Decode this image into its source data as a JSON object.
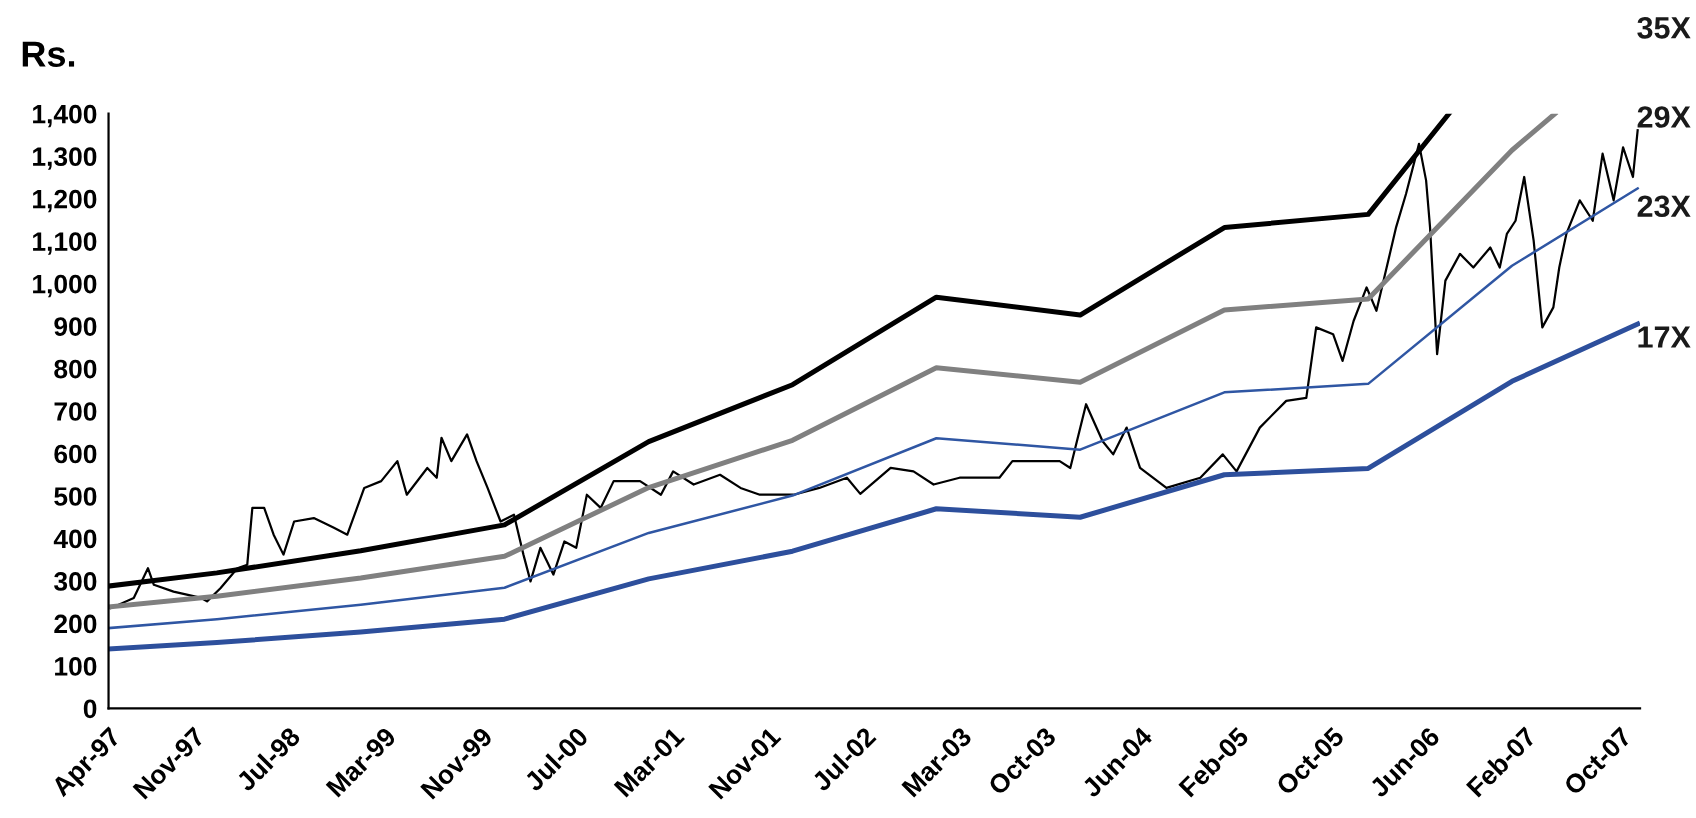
{
  "chart_data": {
    "type": "line",
    "ylabel": "Rs.",
    "xlim": [
      "1997-04-01",
      "2007-11-22"
    ],
    "xticks": [
      {
        "value": "1997-04-01",
        "label": "Apr-97"
      },
      {
        "value": "1997-11-01",
        "label": "Nov-97"
      },
      {
        "value": "1998-07-01",
        "label": "Jul-98"
      },
      {
        "value": "1999-03-01",
        "label": "Mar-99"
      },
      {
        "value": "1999-11-01",
        "label": "Nov-99"
      },
      {
        "value": "2000-07-01",
        "label": "Jul-00"
      },
      {
        "value": "2001-03-01",
        "label": "Mar-01"
      },
      {
        "value": "2001-11-01",
        "label": "Nov-01"
      },
      {
        "value": "2002-07-01",
        "label": "Jul-02"
      },
      {
        "value": "2003-03-01",
        "label": "Mar-03"
      },
      {
        "value": "2003-10-01",
        "label": "Oct-03"
      },
      {
        "value": "2004-06-01",
        "label": "Jun-04"
      },
      {
        "value": "2005-02-01",
        "label": "Feb-05"
      },
      {
        "value": "2005-10-01",
        "label": "Oct-05"
      },
      {
        "value": "2006-06-01",
        "label": "Jun-06"
      },
      {
        "value": "2007-02-01",
        "label": "Feb-07"
      },
      {
        "value": "2007-10-01",
        "label": "Oct-07"
      }
    ],
    "ylim": [
      0,
      1400
    ],
    "yticks": [
      0,
      100,
      200,
      300,
      400,
      500,
      600,
      700,
      800,
      900,
      {
        "value": 1000,
        "label": "1,000"
      },
      {
        "value": 1100,
        "label": "1,100"
      },
      {
        "value": 1200,
        "label": "1,200"
      },
      {
        "value": 1300,
        "label": "1,300"
      },
      {
        "value": 1400,
        "label": "1,400"
      }
    ],
    "grid": false,
    "legend": false,
    "marker": "none",
    "line_style": "solid",
    "series": [
      {
        "color": "#000000",
        "x": [
          "1997-04-07",
          "1997-06-04",
          "1997-07-10",
          "1997-07-25",
          "1997-09-13",
          "1997-11-22",
          "1997-12-07",
          "1998-01-10",
          "1998-02-22",
          "1998-03-19",
          "1998-04-01",
          "1998-05-01",
          "1998-05-25",
          "1998-06-19",
          "1998-07-16",
          "1998-09-04",
          "1998-10-25",
          "1998-11-28",
          "1999-01-10",
          "1999-02-22",
          "1999-04-04",
          "1999-04-28",
          "1999-06-19",
          "1999-07-13",
          "1999-07-25",
          "1999-08-19",
          "1999-09-28",
          "1999-10-22",
          "1999-11-19",
          "1999-12-22",
          "2000-01-25",
          "2000-02-18",
          "2000-03-07",
          "2000-04-01",
          "2000-05-04",
          "2000-06-01",
          "2000-07-01",
          "2000-07-28",
          "2000-09-01",
          "2000-10-04",
          "2000-12-10",
          "2001-02-01",
          "2001-03-04",
          "2001-04-25",
          "2001-07-01",
          "2001-08-22",
          "2001-10-10",
          "2002-01-04",
          "2002-03-10",
          "2002-05-19",
          "2002-06-22",
          "2002-09-07",
          "2002-11-04",
          "2002-12-25",
          "2003-03-01",
          "2003-06-10",
          "2003-07-13",
          "2003-11-10",
          "2003-12-07",
          "2004-01-16",
          "2004-02-27",
          "2004-03-25",
          "2004-04-28",
          "2004-06-01",
          "2004-08-07",
          "2004-11-01",
          "2004-12-28",
          "2005-02-01",
          "2005-04-01",
          "2005-06-07",
          "2005-07-28",
          "2005-08-22",
          "2005-10-04",
          "2005-10-28",
          "2005-11-25",
          "2005-12-28",
          "2006-01-22",
          "2006-03-13",
          "2006-04-07",
          "2006-05-10",
          "2006-05-28",
          "2006-06-07",
          "2006-06-25",
          "2006-07-16",
          "2006-08-22",
          "2006-09-25",
          "2006-11-07",
          "2006-12-01",
          "2006-12-19",
          "2007-01-10",
          "2007-02-01",
          "2007-02-25",
          "2007-03-19",
          "2007-04-16",
          "2007-05-01",
          "2007-05-19",
          "2007-06-22",
          "2007-07-25",
          "2007-08-19",
          "2007-09-16",
          "2007-10-10",
          "2007-11-04",
          "2007-11-16"
        ],
        "values": [
          236,
          260,
          330,
          291,
          275,
          260,
          252,
          283,
          330,
          338,
          472,
          472,
          409,
          362,
          440,
          448,
          425,
          409,
          519,
          535,
          582,
          503,
          566,
          543,
          637,
          582,
          645,
          582,
          519,
          440,
          456,
          362,
          299,
          378,
          315,
          393,
          378,
          503,
          472,
          535,
          535,
          503,
          558,
          527,
          550,
          519,
          503,
          503,
          519,
          543,
          505,
          566,
          558,
          527,
          543,
          543,
          582,
          582,
          566,
          716,
          629,
          598,
          661,
          566,
          519,
          543,
          598,
          558,
          661,
          724,
          731,
          897,
          881,
          818,
          912,
          991,
          936,
          1133,
          1211,
          1329,
          1243,
          1133,
          834,
          1007,
          1070,
          1038,
          1085,
          1038,
          1117,
          1148,
          1251,
          1101,
          897,
          944,
          1038,
          1117,
          1196,
          1148,
          1306,
          1196,
          1321,
          1251,
          1361
        ]
      },
      {
        "name": "35X",
        "color": "#000000",
        "x": [
          "1997-04-01",
          "1998-01-01",
          "1999-01-01",
          "2000-01-01",
          "2001-01-01",
          "2002-01-01",
          "2003-01-01",
          "2004-01-01",
          "2005-01-01",
          "2006-01-01",
          "2006-07-25"
        ],
        "values": [
          288,
          319,
          371,
          432,
          628,
          762,
          968,
          926,
          1132,
          1163,
          1400
        ]
      },
      {
        "name": "29X",
        "color": "#808080",
        "x": [
          "1997-04-01",
          "1998-01-01",
          "1999-01-01",
          "2000-01-01",
          "2001-01-01",
          "2002-01-01",
          "2003-01-01",
          "2004-01-01",
          "2005-01-01",
          "2006-01-01",
          "2007-01-01",
          "2007-04-20"
        ],
        "values": [
          239,
          264,
          307,
          358,
          520,
          631,
          802,
          768,
          938,
          964,
          1314,
          1400
        ]
      },
      {
        "name": "23X",
        "color": "#2f56a3",
        "x": [
          "1997-04-01",
          "1998-01-01",
          "1999-01-01",
          "2000-01-01",
          "2001-01-01",
          "2002-01-01",
          "2003-01-01",
          "2004-01-01",
          "2005-01-01",
          "2006-01-01",
          "2007-01-01",
          "2007-11-16"
        ],
        "values": [
          189,
          210,
          244,
          284,
          413,
          501,
          636,
          609,
          744,
          764,
          1042,
          1224
        ]
      },
      {
        "name": "17X",
        "color": "#2d4f9c",
        "x": [
          "1997-04-01",
          "1998-01-01",
          "1999-01-01",
          "2000-01-01",
          "2001-01-01",
          "2002-01-01",
          "2003-01-01",
          "2004-01-01",
          "2005-01-01",
          "2006-01-01",
          "2007-01-01",
          "2007-11-16"
        ],
        "values": [
          140,
          155,
          180,
          210,
          305,
          370,
          470,
          450,
          550,
          565,
          770,
          905
        ]
      }
    ]
  }
}
